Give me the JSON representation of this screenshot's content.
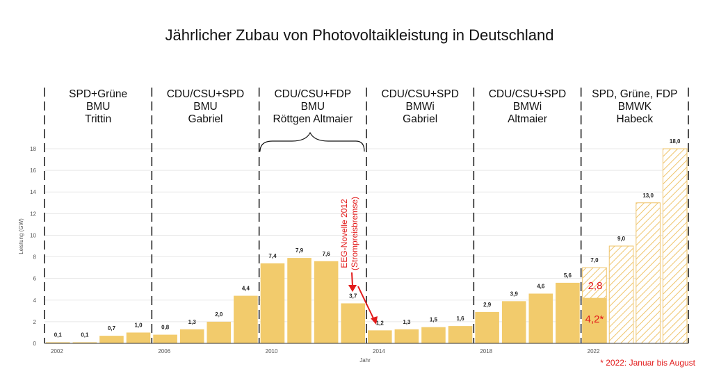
{
  "chart_data": {
    "type": "bar",
    "title": "Jährlicher Zubau von Photovoltaikleistung in Deutschland",
    "xlabel": "Jahr",
    "ylabel": "Leistung (GW)",
    "ylim": [
      0,
      18
    ],
    "yticks": [
      "0",
      "2",
      "4",
      "6",
      "8",
      "10",
      "12",
      "14",
      "16",
      "18"
    ],
    "grid": true,
    "x": [
      2002,
      2003,
      2004,
      2005,
      2006,
      2007,
      2008,
      2009,
      2010,
      2011,
      2012,
      2013,
      2014,
      2015,
      2016,
      2017,
      2018,
      2019,
      2020,
      2021,
      2022,
      2023,
      2024,
      2025
    ],
    "xtick_labels": [
      "2002",
      "2006",
      "2010",
      "2014",
      "2018",
      "2022"
    ],
    "values": [
      0.1,
      0.1,
      0.7,
      1.0,
      0.8,
      1.3,
      2.0,
      4.4,
      7.4,
      7.9,
      7.6,
      3.7,
      1.2,
      1.3,
      1.5,
      1.6,
      2.9,
      3.9,
      4.6,
      5.6,
      7.0,
      9.0,
      13.0,
      18.0
    ],
    "value_labels": [
      "0,1",
      "0,1",
      "0,7",
      "1,0",
      "0,8",
      "1,3",
      "2,0",
      "4,4",
      "7,4",
      "7,9",
      "7,6",
      "3,7",
      "1,2",
      "1,3",
      "1,5",
      "1,6",
      "2,9",
      "3,9",
      "4,6",
      "5,6",
      "7,0",
      "9,0",
      "13,0",
      "18,0"
    ],
    "hatched_from_index": 20,
    "partial_2022": {
      "actual": 4.2,
      "actual_label": "4,2*",
      "remaining_label": "2,8"
    },
    "governments": [
      {
        "lines": [
          "SPD+Grüne",
          "BMU",
          "Trittin"
        ]
      },
      {
        "lines": [
          "CDU/CSU+SPD",
          "BMU",
          "Gabriel"
        ]
      },
      {
        "lines": [
          "CDU/CSU+FDP",
          "BMU",
          "Röttgen   Altmaier"
        ]
      },
      {
        "lines": [
          "CDU/CSU+SPD",
          "BMWi",
          "Gabriel"
        ]
      },
      {
        "lines": [
          "CDU/CSU+SPD",
          "BMWi",
          "Altmaier"
        ]
      },
      {
        "lines": [
          "SPD, Grüne, FDP",
          "BMWK",
          "Habeck"
        ]
      }
    ],
    "annotation": {
      "line1": "EEG-Novelle 2012",
      "line2": "(Strompreisbremse)"
    },
    "footnote": "* 2022: Januar bis August",
    "colors": {
      "bar": "#f2cb6c",
      "hatch": "#efc46a",
      "red": "#e21b1b",
      "grid": "#e8e8e8"
    }
  }
}
